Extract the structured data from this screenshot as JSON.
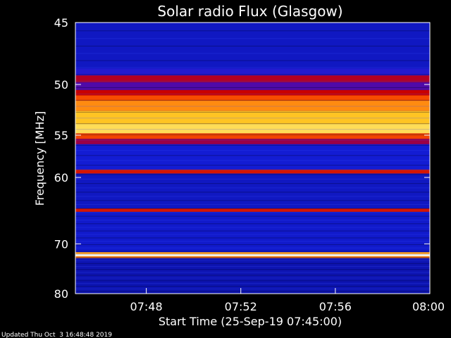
{
  "chart_data": {
    "type": "heatmap",
    "title": "Solar radio Flux (Glasgow)",
    "xlabel": "Start Time (25-Sep-19 07:45:00)",
    "ylabel": "Frequency [MHz]",
    "x_ticks": [
      "07:48",
      "07:52",
      "07:56",
      "08:00"
    ],
    "x_tick_values_min": [
      3,
      7,
      11,
      15
    ],
    "xlim_min": [
      0,
      15
    ],
    "y_ticks": [
      45,
      50,
      55,
      60,
      70,
      80
    ],
    "ylim_mhz": [
      45,
      80
    ],
    "y_scale": "reciprocal",
    "bands": [
      {
        "f_from": 45.0,
        "f_to": 48.6,
        "intensity": 0.12
      },
      {
        "f_from": 48.6,
        "f_to": 49.2,
        "intensity": 0.18
      },
      {
        "f_from": 49.2,
        "f_to": 49.8,
        "intensity": 0.5
      },
      {
        "f_from": 49.8,
        "f_to": 50.5,
        "intensity": 0.28
      },
      {
        "f_from": 50.5,
        "f_to": 51.0,
        "intensity": 0.55
      },
      {
        "f_from": 51.0,
        "f_to": 51.5,
        "intensity": 0.72
      },
      {
        "f_from": 51.5,
        "f_to": 52.5,
        "intensity": 0.82
      },
      {
        "f_from": 52.5,
        "f_to": 53.8,
        "intensity": 0.9
      },
      {
        "f_from": 53.8,
        "f_to": 54.8,
        "intensity": 0.94
      },
      {
        "f_from": 54.8,
        "f_to": 55.4,
        "intensity": 0.7
      },
      {
        "f_from": 55.4,
        "f_to": 56.0,
        "intensity": 0.45
      },
      {
        "f_from": 56.0,
        "f_to": 59.0,
        "intensity": 0.14
      },
      {
        "f_from": 59.0,
        "f_to": 59.5,
        "intensity": 0.6
      },
      {
        "f_from": 59.5,
        "f_to": 64.3,
        "intensity": 0.12
      },
      {
        "f_from": 64.3,
        "f_to": 64.8,
        "intensity": 0.6
      },
      {
        "f_from": 64.8,
        "f_to": 71.5,
        "intensity": 0.13
      },
      {
        "f_from": 71.5,
        "f_to": 71.85,
        "intensity": 0.85
      },
      {
        "f_from": 71.85,
        "f_to": 72.25,
        "intensity": 1.0
      },
      {
        "f_from": 72.25,
        "f_to": 72.6,
        "intensity": 0.8
      },
      {
        "f_from": 72.6,
        "f_to": 80.0,
        "intensity": 0.1
      }
    ],
    "colormap": "blue-red-yellow-white",
    "grid": false,
    "legend": "none"
  },
  "footer": "Updated Thu Oct  3 16:48:48 2019"
}
